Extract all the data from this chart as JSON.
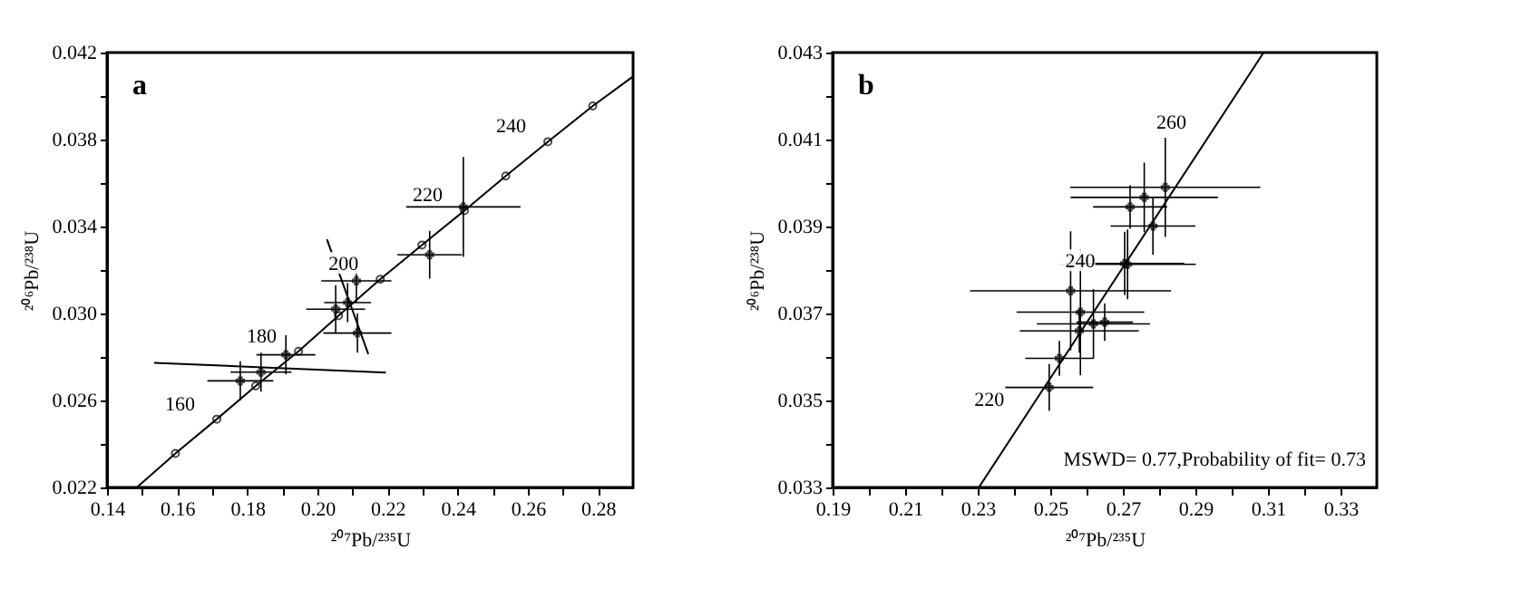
{
  "chart_data": [
    {
      "type": "scatter",
      "title": "a",
      "xlabel": "²⁰⁷Pb/²³⁵U",
      "ylabel": "²⁰⁶Pb/²³⁸U",
      "xlim": [
        0.14,
        0.29
      ],
      "ylim": [
        0.022,
        0.042
      ],
      "xticks": [
        {
          "value": 0.14,
          "label": "0.14"
        },
        {
          "value": 0.15,
          "label": null
        },
        {
          "value": 0.16,
          "label": "0.16"
        },
        {
          "value": 0.17,
          "label": null
        },
        {
          "value": 0.18,
          "label": "0.18"
        },
        {
          "value": 0.19,
          "label": null
        },
        {
          "value": 0.2,
          "label": "0.20"
        },
        {
          "value": 0.21,
          "label": null
        },
        {
          "value": 0.22,
          "label": "0.22"
        },
        {
          "value": 0.23,
          "label": null
        },
        {
          "value": 0.24,
          "label": "0.24"
        },
        {
          "value": 0.25,
          "label": null
        },
        {
          "value": 0.26,
          "label": "0.26"
        },
        {
          "value": 0.27,
          "label": null
        },
        {
          "value": 0.28,
          "label": "0.28"
        }
      ],
      "yticks": [
        {
          "value": 0.022,
          "label": "0.022"
        },
        {
          "value": 0.024,
          "label": null
        },
        {
          "value": 0.026,
          "label": "0.026"
        },
        {
          "value": 0.028,
          "label": null
        },
        {
          "value": 0.03,
          "label": "0.030"
        },
        {
          "value": 0.032,
          "label": null
        },
        {
          "value": 0.034,
          "label": "0.034"
        },
        {
          "value": 0.036,
          "label": null
        },
        {
          "value": 0.038,
          "label": "0.038"
        },
        {
          "value": 0.04,
          "label": null
        },
        {
          "value": 0.042,
          "label": "0.042"
        }
      ],
      "grid": false,
      "series": [
        {
          "type": "line",
          "color": "#000000",
          "x": [
            0.1485,
            0.1595,
            0.1713,
            0.1824,
            0.1946,
            0.206,
            0.2179,
            0.2298,
            0.2419,
            0.2537,
            0.2657,
            0.2785,
            0.29
          ],
          "values": [
            0.022,
            0.02356,
            0.02514,
            0.02667,
            0.02826,
            0.0299,
            0.03157,
            0.03315,
            0.03473,
            0.03632,
            0.0379,
            0.03954,
            0.0409
          ]
        },
        {
          "type": "scatter",
          "marker": "circle",
          "color": "#000000",
          "x": [
            0.1595,
            0.1713,
            0.1824,
            0.1946,
            0.206,
            0.2179,
            0.2298,
            0.2419,
            0.2537,
            0.2657,
            0.2785
          ],
          "values": [
            0.02356,
            0.02514,
            0.02667,
            0.02826,
            0.0299,
            0.03157,
            0.03315,
            0.03473,
            0.03632,
            0.0379,
            0.03954
          ]
        },
        {
          "type": "line",
          "color": "#000000",
          "x": [
            0.1534,
            0.2195
          ],
          "values": [
            0.02773,
            0.02728
          ]
        },
        {
          "type": "line",
          "color": "#000000",
          "x": [
            0.2027,
            0.2145
          ],
          "values": [
            0.03341,
            0.02813
          ]
        },
        {
          "type": "scatter",
          "marker": "cross",
          "color": "#000000",
          "x": [
            0.178,
            0.1839,
            0.191,
            0.2052,
            0.2111,
            0.2114,
            0.2086,
            0.232,
            0.2416
          ],
          "values": [
            0.0269,
            0.0273,
            0.0281,
            0.0302,
            0.0315,
            0.0291,
            0.0305,
            0.0327,
            0.0349
          ],
          "xerrors": [
            0.0094,
            0.0087,
            0.0084,
            0.0084,
            0.01,
            0.0097,
            0.0067,
            0.0092,
            0.0163
          ],
          "errors": [
            0.0009,
            0.0009,
            0.0009,
            0.0011,
            0.001,
            0.0009,
            0.0009,
            0.0011,
            0.0023
          ]
        }
      ],
      "annotations": [
        {
          "text": "160",
          "x": 0.1713,
          "y": 0.02514
        },
        {
          "text": "180",
          "x": 0.1946,
          "y": 0.02826
        },
        {
          "text": "200",
          "x": 0.2179,
          "y": 0.03157
        },
        {
          "text": "220",
          "x": 0.2419,
          "y": 0.03473
        },
        {
          "text": "240",
          "x": 0.2657,
          "y": 0.0379
        }
      ]
    },
    {
      "type": "scatter",
      "title": "b",
      "xlabel": "²⁰⁷Pb/²³⁵U",
      "ylabel": "²⁰⁶Pb/²³⁸U",
      "xlim": [
        0.19,
        0.34
      ],
      "ylim": [
        0.033,
        0.043
      ],
      "xticks": [
        {
          "value": 0.19,
          "label": "0.19"
        },
        {
          "value": 0.2,
          "label": null
        },
        {
          "value": 0.21,
          "label": "0.21"
        },
        {
          "value": 0.22,
          "label": null
        },
        {
          "value": 0.23,
          "label": "0.23"
        },
        {
          "value": 0.24,
          "label": null
        },
        {
          "value": 0.25,
          "label": "0.25"
        },
        {
          "value": 0.26,
          "label": null
        },
        {
          "value": 0.27,
          "label": "0.27"
        },
        {
          "value": 0.28,
          "label": null
        },
        {
          "value": 0.29,
          "label": "0.29"
        },
        {
          "value": 0.3,
          "label": null
        },
        {
          "value": 0.31,
          "label": "0.31"
        },
        {
          "value": 0.32,
          "label": null
        },
        {
          "value": 0.33,
          "label": "0.33"
        }
      ],
      "yticks": [
        {
          "value": 0.033,
          "label": "0.033"
        },
        {
          "value": 0.034,
          "label": null
        },
        {
          "value": 0.035,
          "label": "0.035"
        },
        {
          "value": 0.036,
          "label": null
        },
        {
          "value": 0.037,
          "label": "0.037"
        },
        {
          "value": 0.038,
          "label": null
        },
        {
          "value": 0.039,
          "label": "0.039"
        },
        {
          "value": 0.04,
          "label": null
        },
        {
          "value": 0.041,
          "label": "0.041"
        },
        {
          "value": 0.042,
          "label": null
        },
        {
          "value": 0.043,
          "label": "0.043"
        }
      ],
      "grid": false,
      "series": [
        {
          "type": "line",
          "color": "#000000",
          "x": [
            0.2303,
            0.3088
          ],
          "values": [
            0.033,
            0.043
          ]
        },
        {
          "type": "scatter",
          "marker": "cross",
          "color": "#000000",
          "x": [
            0.2817,
            0.2759,
            0.272,
            0.2556,
            0.2583,
            0.2713,
            0.2783,
            0.258,
            0.2619,
            0.265,
            0.2525,
            0.2497,
            0.2705
          ],
          "values": [
            0.0399,
            0.03967,
            0.03945,
            0.03752,
            0.03703,
            0.03813,
            0.03901,
            0.0366,
            0.03676,
            0.0368,
            0.03597,
            0.0353,
            0.03815
          ],
          "xerrors": [
            0.0262,
            0.0203,
            0.0102,
            0.0277,
            0.0176,
            0.0188,
            0.0117,
            0.0164,
            0.0156,
            0.0078,
            0.0094,
            0.0121,
            0.0164
          ],
          "errors": [
            0.00114,
            0.0008,
            0.0005,
            0.00137,
            0.00145,
            0.0008,
            0.00066,
            0.0005,
            0.0008,
            0.00043,
            0.0004,
            0.00054,
            0.00073
          ]
        }
      ],
      "annotations": [
        {
          "text": "220",
          "x": 0.2433,
          "y": 0.03466
        },
        {
          "text": "240",
          "x": 0.2684,
          "y": 0.03785
        },
        {
          "text": "260",
          "x": 0.2935,
          "y": 0.04105
        },
        "MSWD= 0.77,Probability of fit= 0.73"
      ]
    }
  ]
}
